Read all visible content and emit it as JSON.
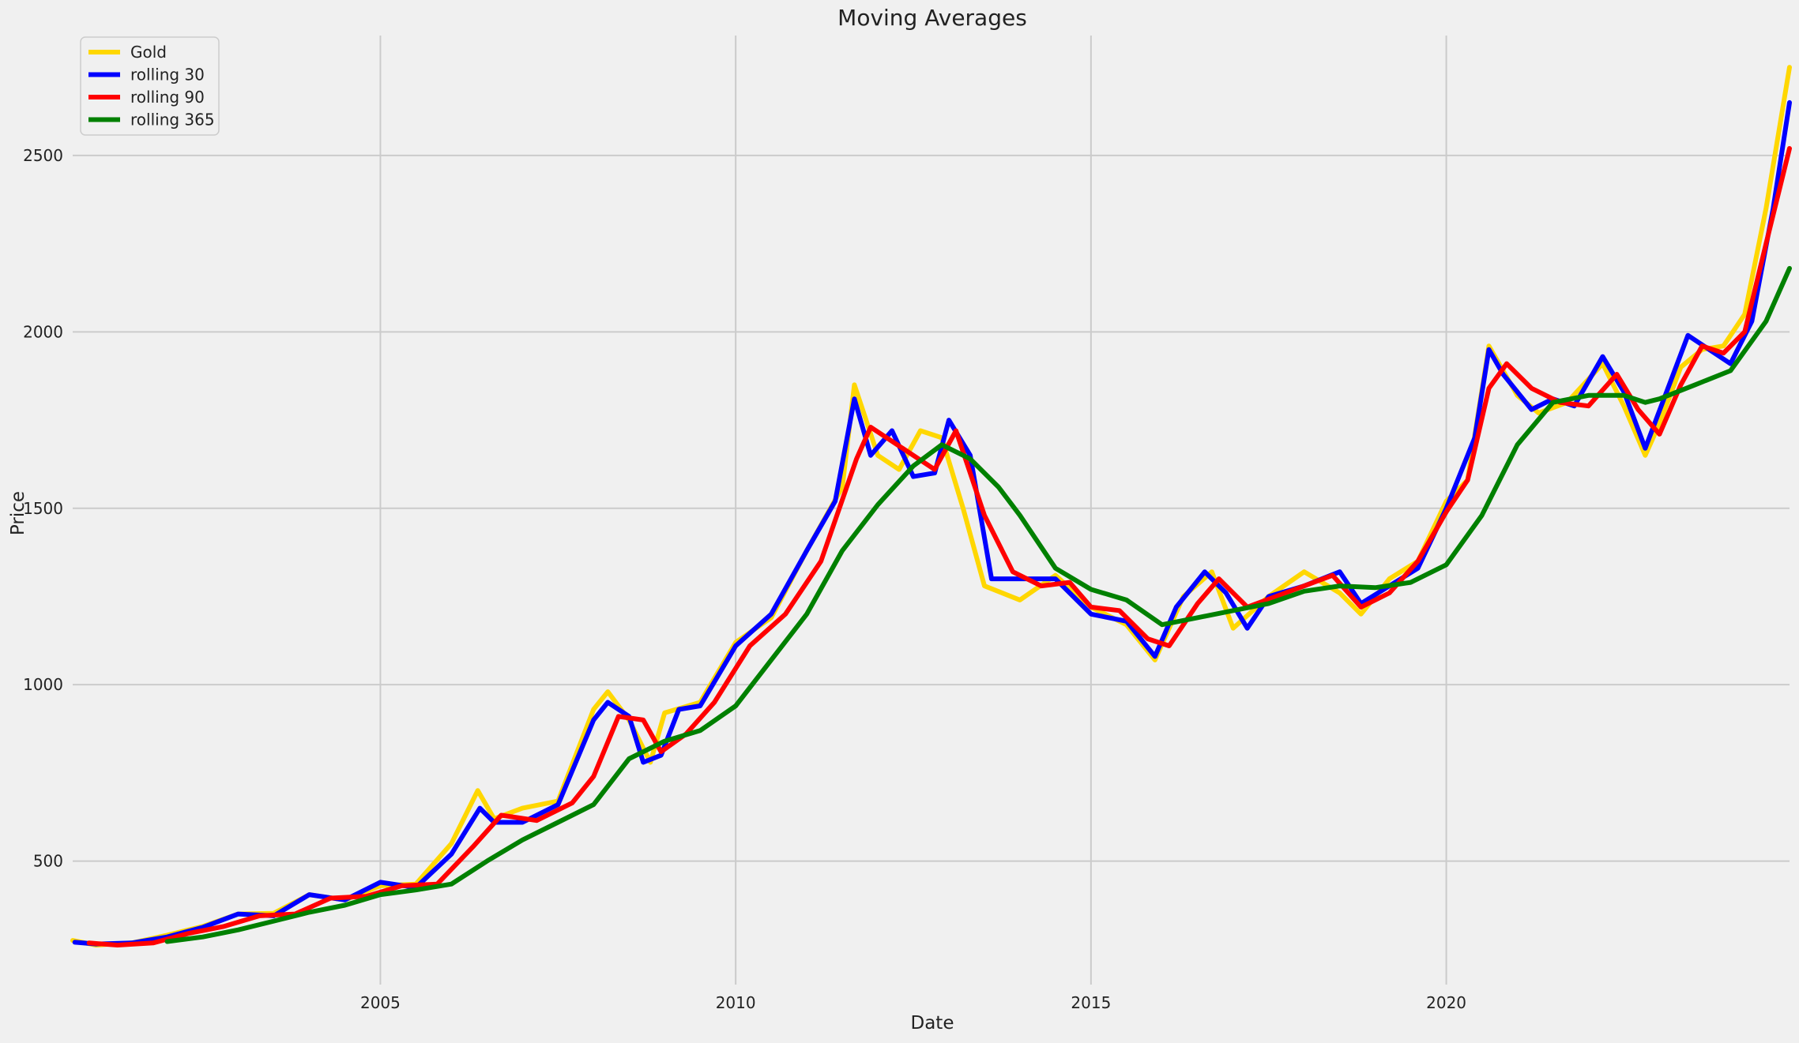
{
  "chart_data": {
    "type": "line",
    "title": "Moving Averages",
    "xlabel": "Date",
    "ylabel": "Price",
    "xlim": [
      2000.67,
      2024.83
    ],
    "ylim": [
      150,
      2840
    ],
    "x_ticks": [
      2005,
      2010,
      2015,
      2020
    ],
    "x_tick_labels": [
      "2005",
      "2010",
      "2015",
      "2020"
    ],
    "y_ticks": [
      500,
      1000,
      1500,
      2000,
      2500
    ],
    "y_tick_labels": [
      "500",
      "1000",
      "1500",
      "2000",
      "2500"
    ],
    "grid": true,
    "legend_position": "top-left",
    "series": [
      {
        "name": "Gold",
        "color": "#ffd700",
        "x": [
          2000.67,
          2001.0,
          2001.5,
          2002.0,
          2002.5,
          2003.0,
          2003.5,
          2004.0,
          2004.5,
          2005.0,
          2005.5,
          2006.0,
          2006.37,
          2006.6,
          2007.0,
          2007.5,
          2008.0,
          2008.2,
          2008.5,
          2008.8,
          2009.0,
          2009.5,
          2010.0,
          2010.5,
          2011.0,
          2011.5,
          2011.67,
          2012.0,
          2012.3,
          2012.6,
          2012.9,
          2013.2,
          2013.5,
          2014.0,
          2014.5,
          2015.0,
          2015.5,
          2015.9,
          2016.3,
          2016.7,
          2017.0,
          2017.5,
          2018.0,
          2018.5,
          2018.8,
          2019.2,
          2019.6,
          2020.0,
          2020.3,
          2020.6,
          2021.0,
          2021.3,
          2021.7,
          2022.2,
          2022.5,
          2022.8,
          2023.0,
          2023.3,
          2023.6,
          2023.9,
          2024.2,
          2024.5,
          2024.83
        ],
        "values": [
          275,
          262,
          268,
          290,
          315,
          350,
          352,
          405,
          390,
          430,
          435,
          550,
          700,
          620,
          650,
          670,
          930,
          980,
          900,
          780,
          920,
          950,
          1120,
          1190,
          1380,
          1560,
          1850,
          1650,
          1610,
          1720,
          1700,
          1500,
          1280,
          1240,
          1310,
          1220,
          1170,
          1070,
          1250,
          1320,
          1160,
          1250,
          1320,
          1260,
          1200,
          1300,
          1350,
          1520,
          1580,
          1960,
          1820,
          1770,
          1800,
          1910,
          1790,
          1650,
          1740,
          1900,
          1950,
          1960,
          2050,
          2350,
          2750
        ]
      },
      {
        "name": "rolling 30",
        "color": "#0000ff",
        "x": [
          2000.7,
          2001.0,
          2001.5,
          2002.0,
          2002.5,
          2003.0,
          2003.5,
          2004.0,
          2004.5,
          2005.0,
          2005.5,
          2006.0,
          2006.4,
          2006.6,
          2007.0,
          2007.5,
          2008.0,
          2008.2,
          2008.5,
          2008.7,
          2008.95,
          2009.2,
          2009.5,
          2010.0,
          2010.5,
          2011.0,
          2011.4,
          2011.67,
          2011.9,
          2012.2,
          2012.5,
          2012.8,
          2013.0,
          2013.3,
          2013.6,
          2014.0,
          2014.5,
          2015.0,
          2015.5,
          2015.9,
          2016.2,
          2016.6,
          2016.9,
          2017.2,
          2017.5,
          2018.0,
          2018.5,
          2018.8,
          2019.2,
          2019.6,
          2020.0,
          2020.4,
          2020.6,
          2020.8,
          2021.2,
          2021.5,
          2021.8,
          2022.2,
          2022.5,
          2022.8,
          2023.1,
          2023.4,
          2023.7,
          2024.0,
          2024.3,
          2024.6,
          2024.83
        ],
        "values": [
          270,
          265,
          268,
          285,
          312,
          350,
          345,
          405,
          390,
          440,
          425,
          520,
          650,
          610,
          610,
          660,
          900,
          950,
          910,
          780,
          800,
          930,
          940,
          1110,
          1200,
          1380,
          1520,
          1810,
          1650,
          1720,
          1590,
          1600,
          1750,
          1650,
          1300,
          1300,
          1300,
          1200,
          1180,
          1080,
          1220,
          1320,
          1260,
          1160,
          1250,
          1280,
          1320,
          1230,
          1280,
          1330,
          1500,
          1700,
          1950,
          1880,
          1780,
          1810,
          1790,
          1930,
          1830,
          1670,
          1830,
          1990,
          1950,
          1910,
          2030,
          2350,
          2650
        ]
      },
      {
        "name": "rolling 90",
        "color": "#ff0000",
        "x": [
          2000.9,
          2001.3,
          2001.8,
          2002.3,
          2002.8,
          2003.3,
          2003.8,
          2004.3,
          2004.8,
          2005.3,
          2005.8,
          2006.3,
          2006.7,
          2007.2,
          2007.7,
          2008.0,
          2008.35,
          2008.7,
          2008.95,
          2009.3,
          2009.7,
          2010.2,
          2010.7,
          2011.2,
          2011.7,
          2011.9,
          2012.2,
          2012.5,
          2012.8,
          2013.1,
          2013.5,
          2013.9,
          2014.3,
          2014.7,
          2015.0,
          2015.4,
          2015.8,
          2016.1,
          2016.5,
          2016.8,
          2017.2,
          2017.6,
          2018.0,
          2018.4,
          2018.8,
          2019.2,
          2019.6,
          2020.0,
          2020.3,
          2020.6,
          2020.85,
          2021.2,
          2021.6,
          2022.0,
          2022.4,
          2022.7,
          2023.0,
          2023.3,
          2023.6,
          2023.9,
          2024.2,
          2024.5,
          2024.83
        ],
        "values": [
          268,
          262,
          268,
          295,
          315,
          345,
          350,
          395,
          400,
          430,
          435,
          540,
          630,
          615,
          665,
          740,
          910,
          900,
          810,
          860,
          950,
          1110,
          1200,
          1350,
          1640,
          1730,
          1690,
          1650,
          1610,
          1720,
          1480,
          1320,
          1280,
          1290,
          1220,
          1210,
          1130,
          1110,
          1230,
          1300,
          1220,
          1250,
          1280,
          1310,
          1220,
          1260,
          1350,
          1490,
          1580,
          1840,
          1910,
          1840,
          1800,
          1790,
          1880,
          1780,
          1710,
          1850,
          1960,
          1940,
          2000,
          2250,
          2520
        ]
      },
      {
        "name": "rolling 365",
        "color": "#008000",
        "x": [
          2002.0,
          2002.5,
          2003.0,
          2003.5,
          2004.0,
          2004.5,
          2005.0,
          2005.5,
          2006.0,
          2006.5,
          2007.0,
          2007.5,
          2008.0,
          2008.5,
          2009.0,
          2009.5,
          2010.0,
          2010.5,
          2011.0,
          2011.5,
          2012.0,
          2012.5,
          2012.9,
          2013.3,
          2013.7,
          2014.0,
          2014.5,
          2015.0,
          2015.5,
          2016.0,
          2016.5,
          2017.0,
          2017.5,
          2018.0,
          2018.5,
          2019.0,
          2019.5,
          2020.0,
          2020.5,
          2021.0,
          2021.5,
          2022.0,
          2022.5,
          2022.8,
          2023.0,
          2023.5,
          2024.0,
          2024.5,
          2024.83
        ],
        "values": [
          272,
          285,
          305,
          330,
          355,
          375,
          405,
          418,
          435,
          500,
          560,
          610,
          660,
          790,
          840,
          870,
          940,
          1070,
          1200,
          1380,
          1510,
          1620,
          1680,
          1640,
          1560,
          1480,
          1330,
          1270,
          1240,
          1170,
          1190,
          1210,
          1230,
          1265,
          1280,
          1275,
          1290,
          1340,
          1480,
          1680,
          1800,
          1820,
          1820,
          1800,
          1810,
          1850,
          1890,
          2030,
          2180
        ]
      }
    ]
  }
}
